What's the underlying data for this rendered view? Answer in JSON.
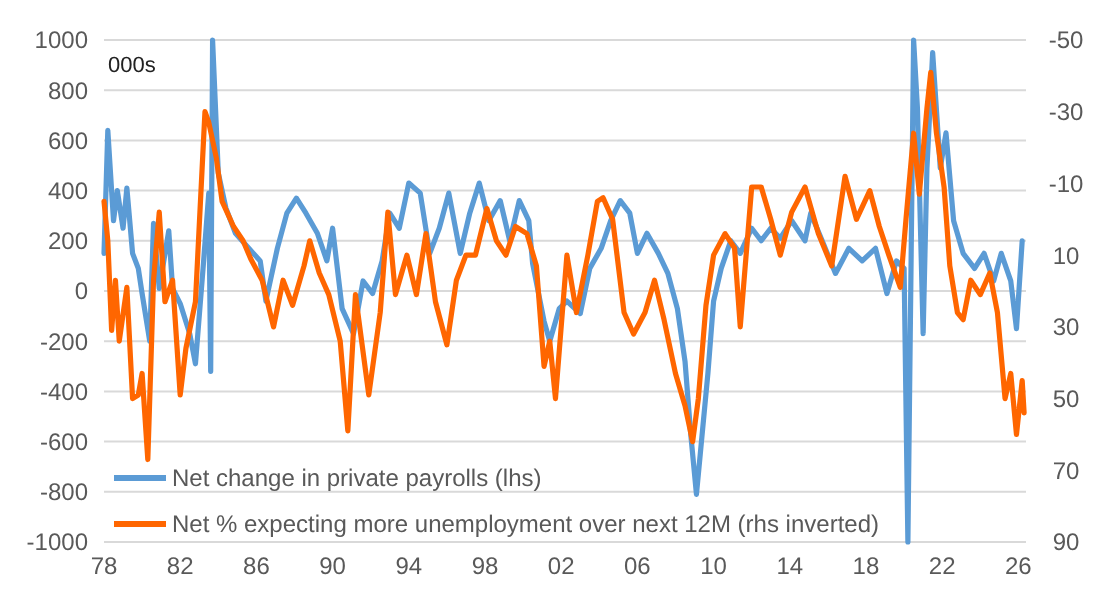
{
  "chart_data": {
    "type": "line",
    "annotations": [
      "000s"
    ],
    "xlim": [
      1978,
      2026.4
    ],
    "xticks": [
      {
        "value": 1978,
        "label": "78"
      },
      {
        "value": 1982,
        "label": "82"
      },
      {
        "value": 1986,
        "label": "86"
      },
      {
        "value": 1990,
        "label": "90"
      },
      {
        "value": 1994,
        "label": "94"
      },
      {
        "value": 1998,
        "label": "98"
      },
      {
        "value": 2002,
        "label": "02"
      },
      {
        "value": 2006,
        "label": "06"
      },
      {
        "value": 2010,
        "label": "10"
      },
      {
        "value": 2014,
        "label": "14"
      },
      {
        "value": 2018,
        "label": "18"
      },
      {
        "value": 2022,
        "label": "22"
      },
      {
        "value": 2026,
        "label": "26"
      }
    ],
    "ylim": [
      -1000,
      1000
    ],
    "yticks": [
      -1000,
      -800,
      -600,
      -400,
      -200,
      0,
      200,
      400,
      600,
      800,
      1000
    ],
    "y2lim": [
      90,
      -50
    ],
    "y2ticks": [
      90,
      70,
      50,
      30,
      10,
      -10,
      -30,
      -50
    ],
    "grid": "y",
    "legend": "bottom left",
    "line_style": "solid",
    "marker": "none",
    "series": [
      {
        "name": "Net change in private payrolls (lhs)",
        "color": "#5b9bd5",
        "x": [
          1978.0,
          1978.2,
          1978.5,
          1978.7,
          1979.0,
          1979.2,
          1979.5,
          1979.8,
          1980.0,
          1980.4,
          1980.6,
          1980.9,
          1981.4,
          1981.6,
          1982.0,
          1982.5,
          1982.8,
          1983.2,
          1983.5,
          1983.6,
          1983.7,
          1984.0,
          1984.4,
          1984.9,
          1985.6,
          1986.2,
          1986.5,
          1987.1,
          1987.6,
          1988.1,
          1988.6,
          1989.2,
          1989.7,
          1990.0,
          1990.5,
          1991.1,
          1991.6,
          1992.1,
          1992.6,
          1993.0,
          1993.5,
          1994.0,
          1994.6,
          1995.1,
          1995.6,
          1996.1,
          1996.7,
          1997.2,
          1997.7,
          1998.2,
          1998.8,
          1999.3,
          1999.8,
          2000.3,
          2000.5,
          2001.1,
          2001.4,
          2001.9,
          2002.3,
          2003.0,
          2003.5,
          2004.1,
          2004.6,
          2005.1,
          2005.6,
          2006.0,
          2006.5,
          2007.1,
          2007.6,
          2008.1,
          2008.5,
          2008.8,
          2009.1,
          2009.3,
          2009.7,
          2010.0,
          2010.4,
          2010.9,
          2011.4,
          2012.0,
          2012.5,
          2013.0,
          2013.5,
          2014.1,
          2014.8,
          2015.1,
          2015.7,
          2016.4,
          2017.1,
          2017.8,
          2018.5,
          2019.1,
          2019.6,
          2020.0,
          2020.2,
          2020.5,
          2020.7,
          2021.0,
          2021.2,
          2021.5,
          2021.9,
          2022.2,
          2022.6,
          2023.1,
          2023.7,
          2024.2,
          2024.7,
          2025.1,
          2025.6,
          2025.9,
          2026.2
        ],
        "values": [
          150,
          640,
          280,
          400,
          250,
          410,
          150,
          90,
          -10,
          -200,
          270,
          10,
          240,
          10,
          -50,
          -170,
          -290,
          90,
          390,
          -320,
          1000,
          470,
          330,
          230,
          170,
          120,
          -40,
          170,
          310,
          370,
          310,
          230,
          120,
          250,
          -70,
          -170,
          40,
          -10,
          120,
          310,
          250,
          430,
          390,
          150,
          250,
          390,
          150,
          310,
          430,
          280,
          360,
          200,
          360,
          280,
          110,
          -120,
          -200,
          -70,
          -40,
          -90,
          90,
          170,
          280,
          360,
          310,
          150,
          230,
          150,
          70,
          -70,
          -280,
          -570,
          -810,
          -650,
          -330,
          -40,
          90,
          200,
          150,
          250,
          200,
          250,
          210,
          280,
          200,
          310,
          200,
          70,
          170,
          120,
          170,
          -10,
          120,
          90,
          -1000,
          1000,
          730,
          -170,
          490,
          950,
          490,
          630,
          280,
          150,
          90,
          150,
          40,
          150,
          40,
          -150,
          200
        ]
      },
      {
        "name": "Net % expecting more unemployment over next 12M (rhs inverted)",
        "color": "#ff6600",
        "axis": "y2",
        "x": [
          1978.0,
          1978.2,
          1978.4,
          1978.6,
          1978.8,
          1979.2,
          1979.5,
          1979.8,
          1980.0,
          1980.3,
          1980.6,
          1980.9,
          1981.2,
          1981.6,
          1982.0,
          1982.3,
          1982.8,
          1983.3,
          1983.5,
          1983.9,
          1984.2,
          1984.8,
          1985.3,
          1985.7,
          1986.3,
          1986.9,
          1987.4,
          1987.9,
          1988.5,
          1988.8,
          1989.3,
          1989.8,
          1990.4,
          1990.8,
          1991.2,
          1991.9,
          1992.5,
          1992.9,
          1993.3,
          1993.9,
          1994.4,
          1994.9,
          1995.4,
          1996.0,
          1996.5,
          1997.0,
          1997.5,
          1998.1,
          1998.6,
          1999.1,
          1999.6,
          2000.2,
          2000.7,
          2001.1,
          2001.4,
          2001.7,
          2002.3,
          2002.8,
          2003.4,
          2003.9,
          2004.2,
          2004.7,
          2005.3,
          2005.8,
          2006.4,
          2006.9,
          2007.4,
          2008.0,
          2008.5,
          2008.9,
          2009.2,
          2009.6,
          2010.0,
          2010.6,
          2011.1,
          2011.4,
          2012.0,
          2012.5,
          2013.0,
          2013.5,
          2014.1,
          2014.8,
          2015.5,
          2016.2,
          2016.9,
          2017.5,
          2018.2,
          2018.7,
          2019.2,
          2019.8,
          2020.1,
          2020.5,
          2020.8,
          2021.2,
          2021.4,
          2021.7,
          2022.1,
          2022.4,
          2022.8,
          2023.1,
          2023.5,
          2024.0,
          2024.5,
          2024.9,
          2025.3,
          2025.6,
          2025.9,
          2026.2,
          2026.3
        ],
        "values": [
          -5,
          6,
          31,
          17,
          34,
          19,
          50,
          49,
          43,
          67,
          17,
          -2,
          23,
          17,
          49,
          36,
          23,
          -30,
          -27,
          -17,
          -5,
          2,
          6,
          11,
          17,
          30,
          17,
          24,
          13,
          6,
          15,
          21,
          34,
          59,
          21,
          49,
          26,
          -2,
          21,
          10,
          21,
          4,
          23,
          35,
          17,
          10,
          10,
          -3,
          6,
          10,
          2,
          4,
          13,
          41,
          34,
          50,
          10,
          26,
          10,
          -5,
          -6,
          0,
          26,
          32,
          26,
          17,
          28,
          43,
          52,
          62,
          50,
          24,
          10,
          4,
          8,
          30,
          -9,
          -9,
          0,
          10,
          -2,
          -9,
          4,
          13,
          -12,
          0,
          -8,
          2,
          10,
          19,
          0,
          -24,
          -7,
          -31,
          -41,
          -24,
          -9,
          13,
          26,
          28,
          17,
          21,
          15,
          26,
          50,
          43,
          60,
          45,
          54
        ]
      }
    ]
  }
}
